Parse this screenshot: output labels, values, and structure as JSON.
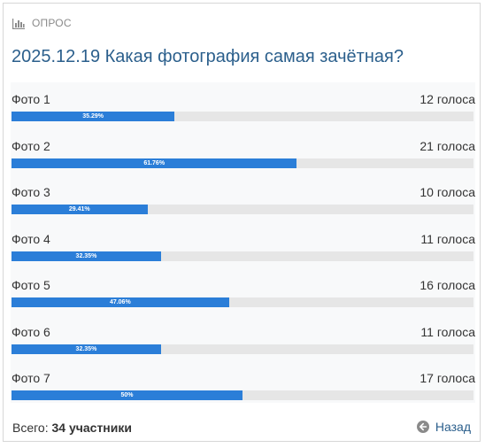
{
  "poll": {
    "header_label": "ОПРОС",
    "header_icon": "bar-chart-icon",
    "title": "2025.12.19 Какая фотография самая зачётная?",
    "options": [
      {
        "name": "Фото 1",
        "votes_text": "12 голоса",
        "percent_label": "35.29%",
        "fraction": 0.3529
      },
      {
        "name": "Фото 2",
        "votes_text": "21 голоса",
        "percent_label": "61.76%",
        "fraction": 0.6176
      },
      {
        "name": "Фото 3",
        "votes_text": "10 голоса",
        "percent_label": "29.41%",
        "fraction": 0.2941
      },
      {
        "name": "Фото 4",
        "votes_text": "11 голоса",
        "percent_label": "32.35%",
        "fraction": 0.3235
      },
      {
        "name": "Фото 5",
        "votes_text": "16 голоса",
        "percent_label": "47.06%",
        "fraction": 0.4706
      },
      {
        "name": "Фото 6",
        "votes_text": "11 голоса",
        "percent_label": "32.35%",
        "fraction": 0.3235
      },
      {
        "name": "Фото 7",
        "votes_text": "17 голоса",
        "percent_label": "50%",
        "fraction": 0.5
      }
    ],
    "total_label": "Всего:",
    "total_value": "34 участники",
    "back_label": "Назад",
    "back_icon": "arrow-left-circle-icon"
  },
  "colors": {
    "title": "#2b5f8c",
    "bar_fill": "#2b7ed8",
    "bar_track": "#e6e6e6",
    "panel_bg": "#f8f9fa"
  }
}
